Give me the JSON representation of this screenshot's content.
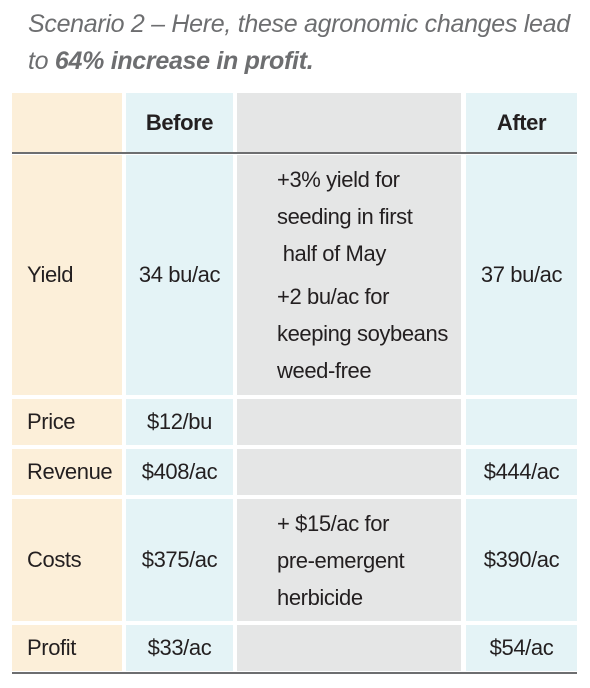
{
  "caption": {
    "prefix": "Scenario 2 – Here, these agronomic changes lead to ",
    "highlight": "64% increase in profit."
  },
  "table": {
    "headers": {
      "label": "",
      "before": "Before",
      "change": "",
      "after": "After"
    },
    "rows": [
      {
        "label": "Yield",
        "before": "34 bu/ac",
        "change": [
          "+3% yield for",
          "seeding in first",
          " half of May",
          "+2 bu/ac for",
          "keeping soybeans",
          "weed-free"
        ],
        "after": "37 bu/ac"
      },
      {
        "label": "Price",
        "before": "$12/bu",
        "change": [],
        "after": ""
      },
      {
        "label": "Revenue",
        "before": "$408/ac",
        "change": [],
        "after": "$444/ac"
      },
      {
        "label": "Costs",
        "before": "$375/ac",
        "change": [
          "+ $15/ac for",
          "pre-emergent",
          "herbicide"
        ],
        "after": "$390/ac"
      },
      {
        "label": "Profit",
        "before": "$33/ac",
        "change": [],
        "after": "$54/ac"
      }
    ]
  }
}
